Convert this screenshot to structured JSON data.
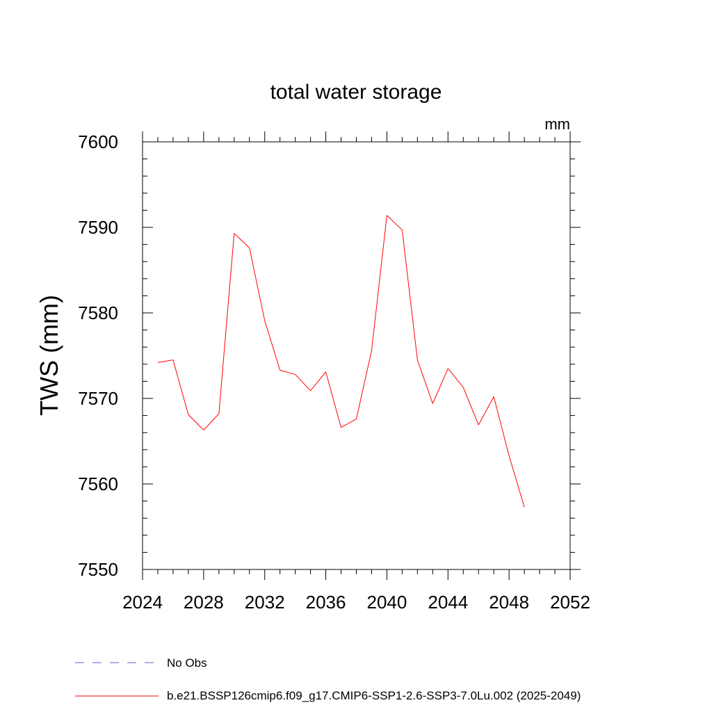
{
  "chart_data": {
    "type": "line",
    "title": "total water storage",
    "units": "mm",
    "ylabel": "TWS  (mm)",
    "xlabel": "",
    "xlim": [
      2024,
      2052
    ],
    "ylim": [
      7550,
      7600
    ],
    "x_ticks": [
      2024,
      2028,
      2032,
      2036,
      2040,
      2044,
      2048,
      2052
    ],
    "y_ticks": [
      7550,
      7560,
      7570,
      7580,
      7590,
      7600
    ],
    "grid": false,
    "legend_position": "bottom",
    "series": [
      {
        "name": "No Obs",
        "style": "dashed",
        "color": "#6a5acd",
        "x": [],
        "values": []
      },
      {
        "name": "b.e21.BSSP126cmip6.f09_g17.CMIP6-SSP1-2.6-SSP3-7.0Lu.002 (2025-2049)",
        "style": "solid",
        "color": "#ff0000",
        "x": [
          2025,
          2026,
          2027,
          2028,
          2029,
          2030,
          2031,
          2032,
          2033,
          2034,
          2035,
          2036,
          2037,
          2038,
          2039,
          2040,
          2041,
          2042,
          2043,
          2044,
          2045,
          2046,
          2047,
          2048,
          2049
        ],
        "values": [
          7574.2,
          7574.5,
          7568.1,
          7566.3,
          7568.2,
          7589.3,
          7587.6,
          7579.1,
          7573.3,
          7572.8,
          7570.9,
          7573.1,
          7566.6,
          7567.6,
          7575.6,
          7591.4,
          7589.7,
          7574.5,
          7569.4,
          7573.5,
          7571.3,
          7566.9,
          7570.2,
          7563.3,
          7557.3
        ]
      }
    ]
  }
}
